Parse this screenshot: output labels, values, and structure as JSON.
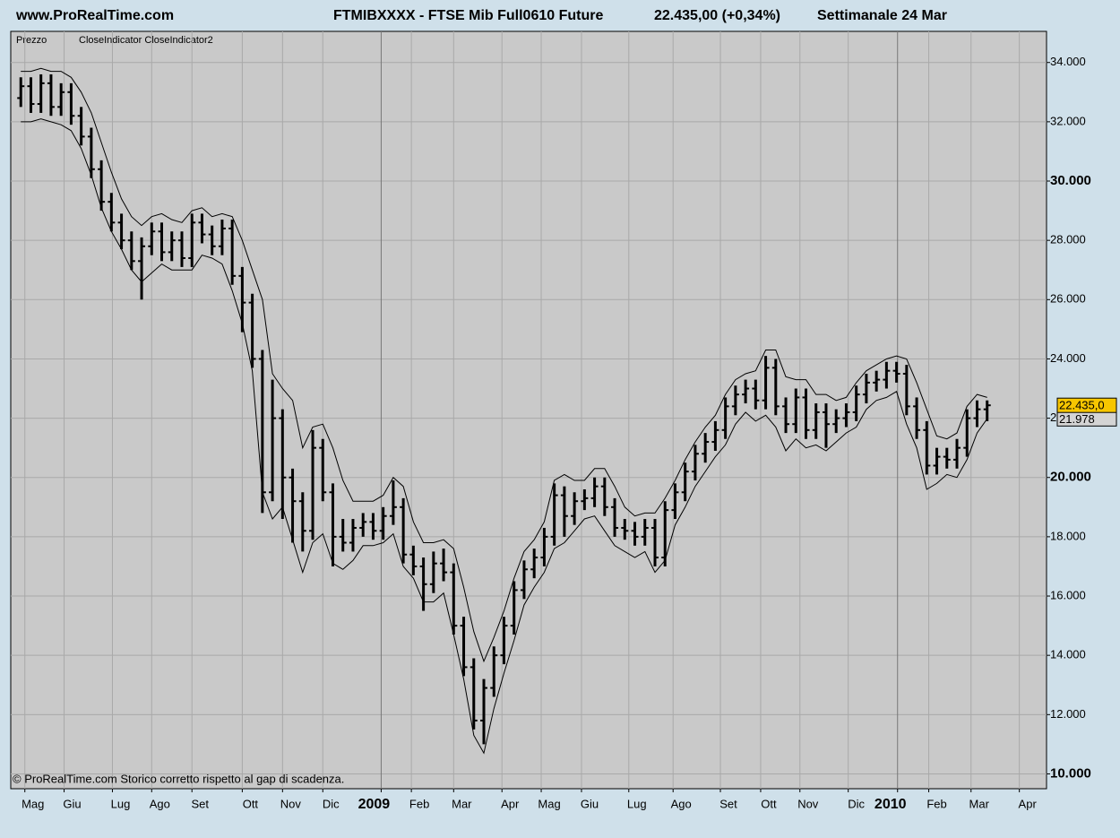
{
  "header": {
    "site": "www.ProRealTime.com",
    "instrument": "FTMIBXXXX - FTSE Mib Full0610 Future",
    "quote": "22.435,00 (+0,34%)",
    "period": "Settimanale  24 Mar"
  },
  "chart_data": {
    "type": "ohlc",
    "legend": [
      "Prezzo",
      "CloseIndicator CloseIndicator2"
    ],
    "footnote": "© ProRealTime.com  Storico corretto rispetto al gap di scadenza.",
    "colors": {
      "background": "#cfe0ea",
      "plot": "#c9c9c9",
      "grid": "#a9a9a9",
      "bars": "#000000",
      "lines": "#000000"
    },
    "grid": true,
    "ylim": [
      9500,
      35050
    ],
    "yticks": [
      {
        "value": 10000,
        "label": "10.000"
      },
      {
        "value": 12000,
        "label": "12.000"
      },
      {
        "value": 14000,
        "label": "14.000"
      },
      {
        "value": 16000,
        "label": "16.000"
      },
      {
        "value": 18000,
        "label": "18.000"
      },
      {
        "value": 20000,
        "label": "20.000"
      },
      {
        "value": 22000,
        "label": "22.000"
      },
      {
        "value": 24000,
        "label": "24.000"
      },
      {
        "value": 26000,
        "label": "26.000"
      },
      {
        "value": 28000,
        "label": "28.000"
      },
      {
        "value": 30000,
        "label": "30.000"
      },
      {
        "value": 32000,
        "label": "32.000"
      },
      {
        "value": 34000,
        "label": "34.000"
      }
    ],
    "xlim": [
      -1,
      101.9
    ],
    "xticks": [
      {
        "value": 0.4,
        "label": "Mag"
      },
      {
        "value": 4.3,
        "label": "Giu"
      },
      {
        "value": 9.1,
        "label": "Lug"
      },
      {
        "value": 13,
        "label": "Ago"
      },
      {
        "value": 17,
        "label": "Set"
      },
      {
        "value": 22,
        "label": "Ott"
      },
      {
        "value": 26,
        "label": "Nov"
      },
      {
        "value": 30,
        "label": "Dic"
      },
      {
        "value": 35.8,
        "label": "2009"
      },
      {
        "value": 38.8,
        "label": "Feb"
      },
      {
        "value": 43,
        "label": "Mar"
      },
      {
        "value": 47.8,
        "label": "Apr"
      },
      {
        "value": 51.7,
        "label": "Mag"
      },
      {
        "value": 55.7,
        "label": "Giu"
      },
      {
        "value": 60.4,
        "label": "Lug"
      },
      {
        "value": 64.8,
        "label": "Ago"
      },
      {
        "value": 69.5,
        "label": "Set"
      },
      {
        "value": 73.5,
        "label": "Ott"
      },
      {
        "value": 77.4,
        "label": "Nov"
      },
      {
        "value": 82.2,
        "label": "Dic"
      },
      {
        "value": 87.1,
        "label": "2010"
      },
      {
        "value": 90.2,
        "label": "Feb"
      },
      {
        "value": 94.4,
        "label": "Mar"
      },
      {
        "value": 99.2,
        "label": "Apr"
      }
    ],
    "open": [
      32800,
      33200,
      32600,
      33300,
      32500,
      33000,
      32200,
      31500,
      30400,
      29300,
      28600,
      28000,
      27300,
      27800,
      28300,
      27600,
      28000,
      27400,
      28600,
      28200,
      27800,
      28400,
      26800,
      25900,
      24000,
      19500,
      22000,
      20000,
      19200,
      18200,
      21000,
      19500,
      18000,
      17800,
      18300,
      18500,
      18200,
      18700,
      19000,
      17400,
      17000,
      16400,
      17100,
      16800,
      15000,
      13600,
      11800,
      12900,
      14000,
      15000,
      16200,
      16900,
      17300,
      18000,
      19400,
      18700,
      19200,
      19300,
      19700,
      19000,
      18300,
      18200,
      18000,
      18300,
      17300,
      18900,
      19500,
      20200,
      20800,
      21200,
      21600,
      22400,
      22800,
      23000,
      22600,
      23700,
      22400,
      21800,
      22700,
      21600,
      22200,
      21800,
      22000,
      22200,
      22800,
      23200,
      23300,
      23600,
      23500,
      22400,
      21600,
      20400,
      20700,
      20600,
      21000,
      22000,
      22300
    ],
    "high": [
      33500,
      33500,
      33600,
      33600,
      33300,
      33300,
      32500,
      31800,
      30700,
      29600,
      28900,
      28300,
      28100,
      28600,
      28600,
      28300,
      28300,
      28900,
      28900,
      28500,
      28700,
      28700,
      27100,
      26200,
      24300,
      23300,
      22300,
      20300,
      19500,
      21600,
      21300,
      19800,
      18600,
      18600,
      18800,
      18800,
      19000,
      19900,
      19300,
      17700,
      17300,
      17500,
      17600,
      17100,
      15300,
      13900,
      13200,
      14300,
      15300,
      16500,
      17200,
      17600,
      18300,
      19800,
      19700,
      19500,
      19600,
      20000,
      20000,
      19300,
      18600,
      18500,
      18600,
      18600,
      19200,
      19800,
      20500,
      21100,
      21500,
      21900,
      22700,
      23100,
      23300,
      23300,
      24100,
      24000,
      22700,
      23000,
      23000,
      22500,
      22500,
      22300,
      22500,
      23100,
      23500,
      23600,
      23900,
      23900,
      23800,
      22700,
      21900,
      21000,
      21000,
      21300,
      22300,
      22600,
      22600
    ],
    "low": [
      32500,
      32300,
      32300,
      32200,
      32200,
      31900,
      31200,
      30100,
      29000,
      28300,
      27700,
      27000,
      26000,
      27500,
      27300,
      27300,
      27100,
      27100,
      27900,
      27500,
      27500,
      26500,
      24900,
      23700,
      18800,
      19200,
      18600,
      17800,
      17500,
      17900,
      19200,
      17000,
      17500,
      17500,
      18000,
      17900,
      17900,
      18400,
      17100,
      16700,
      15500,
      16100,
      16500,
      14700,
      13300,
      11500,
      11000,
      12600,
      13700,
      14700,
      15900,
      16600,
      17000,
      17700,
      18000,
      18400,
      18900,
      19000,
      18700,
      18000,
      17900,
      17700,
      17700,
      17000,
      17000,
      18600,
      19200,
      19900,
      20500,
      20900,
      21300,
      22100,
      22500,
      22300,
      22300,
      22100,
      21500,
      21500,
      21300,
      21300,
      21000,
      21500,
      21700,
      21900,
      22500,
      22900,
      23000,
      23200,
      22100,
      21300,
      20100,
      20100,
      20300,
      20300,
      20700,
      21700,
      21900
    ],
    "close": [
      33200,
      32600,
      33300,
      32500,
      33000,
      32200,
      31500,
      30400,
      29300,
      28600,
      28000,
      27300,
      27800,
      28300,
      27600,
      28000,
      27400,
      28600,
      28200,
      27800,
      28400,
      26800,
      25900,
      24000,
      19500,
      22000,
      20000,
      19200,
      18200,
      21000,
      19500,
      18000,
      17800,
      18300,
      18500,
      18200,
      18700,
      19000,
      17400,
      17000,
      16400,
      17100,
      16800,
      15000,
      13600,
      11800,
      12900,
      14000,
      15000,
      16200,
      16900,
      17300,
      18000,
      19400,
      18700,
      19200,
      19300,
      19700,
      19000,
      18300,
      18200,
      18000,
      18300,
      17300,
      18900,
      19500,
      20200,
      20800,
      21200,
      21600,
      22400,
      22800,
      23000,
      22600,
      23700,
      22400,
      21800,
      22700,
      21600,
      22200,
      21800,
      22000,
      22200,
      22800,
      23200,
      23300,
      23600,
      23500,
      22400,
      21600,
      20400,
      20700,
      20600,
      21000,
      22000,
      22300,
      22435
    ],
    "series": [
      {
        "values": [
          33700,
          33700,
          33800,
          33700,
          33700,
          33500,
          33000,
          32300,
          31300,
          30300,
          29400,
          28800,
          28500,
          28800,
          28900,
          28700,
          28600,
          29000,
          29100,
          28800,
          28900,
          28800,
          28000,
          27000,
          26000,
          23500,
          23000,
          22600,
          21000,
          21700,
          21800,
          21000,
          19900,
          19200,
          19200,
          19200,
          19400,
          20000,
          19700,
          18500,
          17800,
          17800,
          17900,
          17600,
          16300,
          14800,
          13800,
          14600,
          15500,
          16600,
          17500,
          17900,
          18500,
          19900,
          20100,
          19900,
          19900,
          20300,
          20300,
          19700,
          19000,
          18700,
          18800,
          18800,
          19300,
          19900,
          20600,
          21200,
          21700,
          22100,
          22800,
          23300,
          23500,
          23600,
          24300,
          24300,
          23400,
          23300,
          23300,
          22800,
          22800,
          22600,
          22700,
          23200,
          23600,
          23800,
          24000,
          24100,
          24000,
          23200,
          22300,
          21400,
          21300,
          21500,
          22400,
          22800,
          22700
        ]
      },
      {
        "values": [
          32000,
          32000,
          32100,
          32000,
          31900,
          31700,
          31100,
          30200,
          29100,
          28300,
          27700,
          27000,
          26600,
          26900,
          27200,
          27000,
          27000,
          27000,
          27500,
          27400,
          27200,
          26300,
          25200,
          23600,
          19500,
          18600,
          19000,
          17900,
          16800,
          17800,
          18100,
          17100,
          16900,
          17200,
          17700,
          17700,
          17800,
          18100,
          17000,
          16600,
          15800,
          15800,
          16100,
          14700,
          13200,
          11300,
          10700,
          12200,
          13400,
          14500,
          15700,
          16300,
          16800,
          17600,
          17800,
          18200,
          18600,
          18700,
          18200,
          17700,
          17500,
          17300,
          17500,
          16800,
          17200,
          18400,
          19000,
          19700,
          20200,
          20700,
          21100,
          21800,
          22200,
          21900,
          22100,
          21700,
          20900,
          21300,
          21000,
          21100,
          20900,
          21200,
          21500,
          21700,
          22300,
          22600,
          22700,
          22900,
          21800,
          21000,
          19600,
          19800,
          20100,
          20000,
          20600,
          21500,
          21978
        ]
      }
    ],
    "price_markers": [
      {
        "label": "21.978",
        "value": 21978,
        "color": "#d4d4d4"
      },
      {
        "label": "22.435,0",
        "value": 22435,
        "color": "#f7c600"
      }
    ]
  }
}
